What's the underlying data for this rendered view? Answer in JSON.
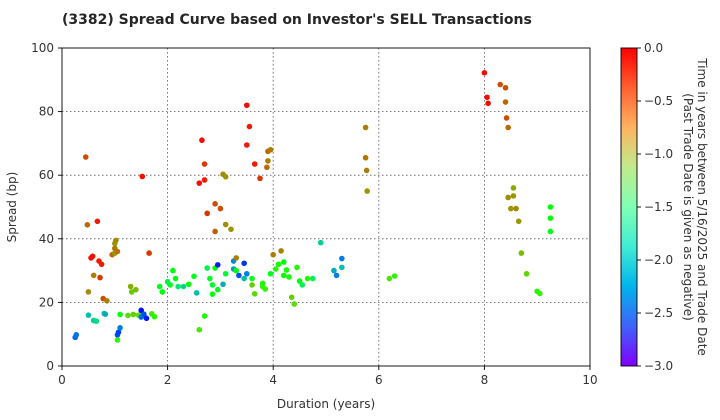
{
  "chart_data": {
    "type": "scatter",
    "title": "(3382)   Spread Curve based on Investor's SELL Transactions",
    "xlabel": "Duration (years)",
    "ylabel": "Spread (bp)",
    "xlim": [
      0,
      10
    ],
    "ylim": [
      0,
      100
    ],
    "xticks": [
      0,
      2,
      4,
      6,
      8,
      10
    ],
    "yticks": [
      0,
      20,
      40,
      60,
      80,
      100
    ],
    "grid": true,
    "colorbar": {
      "label_line1": "Time in years between 5/16/2025 and Trade Date",
      "label_line2": "(Past Trade Date is given as negative)",
      "range": [
        -3.0,
        0.0
      ],
      "ticks": [
        0.0,
        -0.5,
        -1.0,
        -1.5,
        -2.0,
        -2.5,
        -3.0
      ],
      "tick_labels": [
        "0.0",
        "−0.5",
        "−1.0",
        "−1.5",
        "−2.0",
        "−2.5",
        "−3.0"
      ],
      "colormap": "rainbow"
    },
    "points": [
      [
        0.25,
        9.0,
        -2.6
      ],
      [
        0.27,
        9.8,
        -2.55
      ],
      [
        0.45,
        65.7,
        -0.3
      ],
      [
        0.48,
        44.4,
        -0.4
      ],
      [
        0.5,
        23.3,
        -0.55
      ],
      [
        0.5,
        16.0,
        -2.2
      ],
      [
        0.55,
        34.0,
        -0.05
      ],
      [
        0.58,
        34.5,
        -0.05
      ],
      [
        0.6,
        28.5,
        -0.5
      ],
      [
        0.6,
        14.3,
        -2.1
      ],
      [
        0.65,
        14.1,
        -2.0
      ],
      [
        0.67,
        45.5,
        -0.1
      ],
      [
        0.7,
        33.0,
        -0.1
      ],
      [
        0.72,
        27.8,
        -0.2
      ],
      [
        0.75,
        32.0,
        -0.1
      ],
      [
        0.78,
        21.2,
        -0.3
      ],
      [
        0.8,
        16.5,
        -2.2
      ],
      [
        0.82,
        16.3,
        -2.3
      ],
      [
        0.85,
        20.5,
        -0.5
      ],
      [
        0.95,
        35.0,
        -0.4
      ],
      [
        1.0,
        35.5,
        -0.6
      ],
      [
        1.0,
        37.0,
        -0.45
      ],
      [
        1.0,
        38.5,
        -0.6
      ],
      [
        1.02,
        39.5,
        -0.55
      ],
      [
        1.05,
        36.0,
        -0.45
      ],
      [
        1.05,
        9.8,
        -2.7
      ],
      [
        1.07,
        10.6,
        -2.75
      ],
      [
        1.05,
        8.2,
        -1.2
      ],
      [
        1.1,
        12.0,
        -2.5
      ],
      [
        1.1,
        16.2,
        -1.5
      ],
      [
        1.25,
        15.9,
        -1.0
      ],
      [
        1.3,
        25.0,
        -0.7
      ],
      [
        1.32,
        23.3,
        -0.9
      ],
      [
        1.35,
        16.2,
        -0.9
      ],
      [
        1.4,
        24.0,
        -0.8
      ],
      [
        1.45,
        16.0,
        -1.0
      ],
      [
        1.5,
        17.5,
        -2.95
      ],
      [
        1.5,
        15.4,
        -2.6
      ],
      [
        1.52,
        59.6,
        -0.05
      ],
      [
        1.55,
        16.3,
        -2.7
      ],
      [
        1.6,
        15.0,
        -2.9
      ],
      [
        1.65,
        35.5,
        -0.2
      ],
      [
        1.7,
        16.4,
        -1.1
      ],
      [
        1.75,
        15.5,
        -1.3
      ],
      [
        1.85,
        25.0,
        -1.6
      ],
      [
        1.9,
        23.3,
        -1.5
      ],
      [
        2.0,
        26.5,
        -1.8
      ],
      [
        2.05,
        25.5,
        -1.65
      ],
      [
        2.1,
        30.0,
        -1.55
      ],
      [
        2.15,
        27.5,
        -1.55
      ],
      [
        2.2,
        25.0,
        -1.9
      ],
      [
        2.3,
        25.0,
        -2.05
      ],
      [
        2.4,
        25.7,
        -1.5
      ],
      [
        2.5,
        28.2,
        -1.6
      ],
      [
        2.55,
        23.0,
        -2.2
      ],
      [
        2.6,
        57.5,
        -0.05
      ],
      [
        2.6,
        11.4,
        -1.1
      ],
      [
        2.65,
        71.0,
        -0.05
      ],
      [
        2.7,
        63.5,
        -0.2
      ],
      [
        2.7,
        58.5,
        -0.1
      ],
      [
        2.7,
        15.7,
        -1.3
      ],
      [
        2.75,
        30.8,
        -1.8
      ],
      [
        2.75,
        48.0,
        -0.2
      ],
      [
        2.8,
        27.5,
        -1.6
      ],
      [
        2.85,
        22.6,
        -1.55
      ],
      [
        2.85,
        25.5,
        -1.7
      ],
      [
        2.9,
        51.0,
        -0.3
      ],
      [
        2.9,
        42.3,
        -0.35
      ],
      [
        2.9,
        30.8,
        -1.5
      ],
      [
        2.95,
        24.0,
        -1.6
      ],
      [
        2.95,
        31.8,
        -2.9
      ],
      [
        3.0,
        49.5,
        -0.3
      ],
      [
        3.05,
        60.3,
        -0.55
      ],
      [
        3.05,
        25.7,
        -2.3
      ],
      [
        3.1,
        59.5,
        -0.6
      ],
      [
        3.1,
        44.5,
        -0.55
      ],
      [
        3.1,
        29.0,
        -1.7
      ],
      [
        3.2,
        43.0,
        -0.6
      ],
      [
        3.25,
        30.5,
        -2.4
      ],
      [
        3.25,
        33.0,
        -2.45
      ],
      [
        3.3,
        30.0,
        -1.5
      ],
      [
        3.3,
        34.0,
        -0.5
      ],
      [
        3.35,
        28.5,
        -2.7
      ],
      [
        3.45,
        32.3,
        -2.8
      ],
      [
        3.45,
        27.5,
        -2.2
      ],
      [
        3.5,
        82.0,
        -0.05
      ],
      [
        3.5,
        69.5,
        -0.1
      ],
      [
        3.5,
        29.0,
        -2.5
      ],
      [
        3.55,
        75.3,
        -0.1
      ],
      [
        3.6,
        27.5,
        -1.6
      ],
      [
        3.6,
        25.5,
        -0.9
      ],
      [
        3.65,
        63.5,
        -0.1
      ],
      [
        3.65,
        22.7,
        -1.0
      ],
      [
        3.75,
        59.0,
        -0.2
      ],
      [
        3.8,
        25.0,
        -1.2
      ],
      [
        3.8,
        26.0,
        -1.3
      ],
      [
        3.85,
        24.2,
        -1.2
      ],
      [
        3.88,
        62.5,
        -0.4
      ],
      [
        3.9,
        64.5,
        -0.5
      ],
      [
        3.9,
        67.5,
        -0.4
      ],
      [
        3.95,
        68.0,
        -0.45
      ],
      [
        3.95,
        29.0,
        -1.6
      ],
      [
        4.0,
        35.0,
        -0.5
      ],
      [
        4.05,
        30.5,
        -1.3
      ],
      [
        4.1,
        32.0,
        -1.4
      ],
      [
        4.15,
        36.2,
        -0.5
      ],
      [
        4.2,
        32.7,
        -1.55
      ],
      [
        4.2,
        28.5,
        -1.5
      ],
      [
        4.25,
        30.2,
        -1.4
      ],
      [
        4.3,
        28.0,
        -1.4
      ],
      [
        4.35,
        21.6,
        -0.9
      ],
      [
        4.4,
        19.5,
        -1.0
      ],
      [
        4.45,
        31.0,
        -1.3
      ],
      [
        4.5,
        26.7,
        -1.5
      ],
      [
        4.55,
        25.5,
        -1.8
      ],
      [
        4.65,
        27.5,
        -1.3
      ],
      [
        4.75,
        27.5,
        -1.8
      ],
      [
        4.9,
        38.8,
        -2.1
      ],
      [
        5.15,
        30.0,
        -2.3
      ],
      [
        5.2,
        28.5,
        -2.5
      ],
      [
        5.3,
        33.8,
        -2.5
      ],
      [
        5.3,
        31.0,
        -2.2
      ],
      [
        5.75,
        75.0,
        -0.5
      ],
      [
        5.75,
        65.5,
        -0.45
      ],
      [
        5.77,
        61.5,
        -0.5
      ],
      [
        5.78,
        55.0,
        -0.6
      ],
      [
        6.2,
        27.5,
        -1.05
      ],
      [
        6.3,
        28.3,
        -1.2
      ],
      [
        8.0,
        92.2,
        -0.05
      ],
      [
        8.05,
        84.5,
        -0.05
      ],
      [
        8.07,
        82.6,
        -0.05
      ],
      [
        8.3,
        88.5,
        -0.3
      ],
      [
        8.4,
        87.5,
        -0.3
      ],
      [
        8.4,
        83.0,
        -0.4
      ],
      [
        8.42,
        78.0,
        -0.3
      ],
      [
        8.45,
        75.0,
        -0.4
      ],
      [
        8.45,
        53.0,
        -0.55
      ],
      [
        8.5,
        49.5,
        -0.6
      ],
      [
        8.55,
        53.5,
        -0.6
      ],
      [
        8.55,
        56.0,
        -0.7
      ],
      [
        8.6,
        49.5,
        -0.55
      ],
      [
        8.65,
        45.5,
        -0.6
      ],
      [
        8.7,
        35.5,
        -0.8
      ],
      [
        8.8,
        29.0,
        -0.95
      ],
      [
        9.0,
        23.5,
        -1.3
      ],
      [
        9.05,
        22.8,
        -1.2
      ],
      [
        9.25,
        50.0,
        -1.5
      ],
      [
        9.25,
        46.5,
        -1.5
      ],
      [
        9.25,
        42.3,
        -1.6
      ]
    ]
  }
}
